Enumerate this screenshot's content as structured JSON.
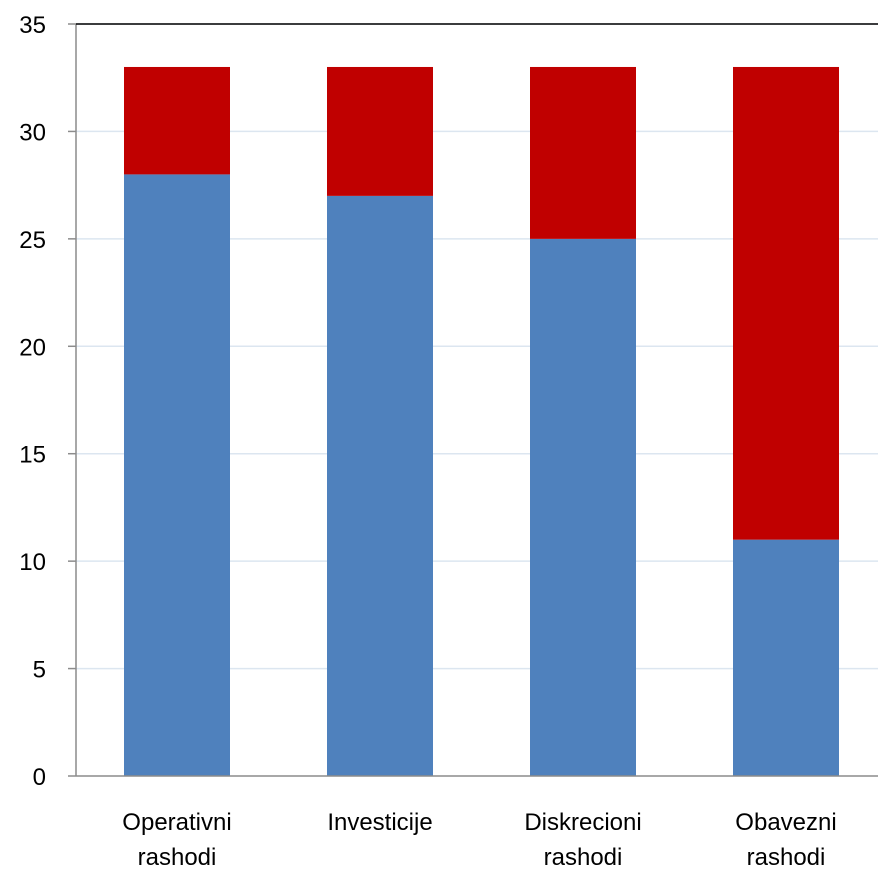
{
  "chart_data": {
    "type": "bar",
    "stacked": true,
    "categories": [
      [
        "Operativni",
        "rashodi"
      ],
      [
        "Investicije"
      ],
      [
        "Diskrecioni",
        "rashodi"
      ],
      [
        "Obavezni",
        "rashodi"
      ]
    ],
    "series": [
      {
        "values": [
          28,
          27,
          25,
          11
        ],
        "color": "#4f81bd"
      },
      {
        "values": [
          5,
          6,
          8,
          22
        ],
        "color": "#c00000"
      }
    ],
    "yticks": [
      "0",
      "5",
      "10",
      "15",
      "20",
      "25",
      "30",
      "35"
    ],
    "ylim": [
      0,
      35
    ],
    "grid": true,
    "title": "",
    "xlabel": "",
    "ylabel": ""
  }
}
